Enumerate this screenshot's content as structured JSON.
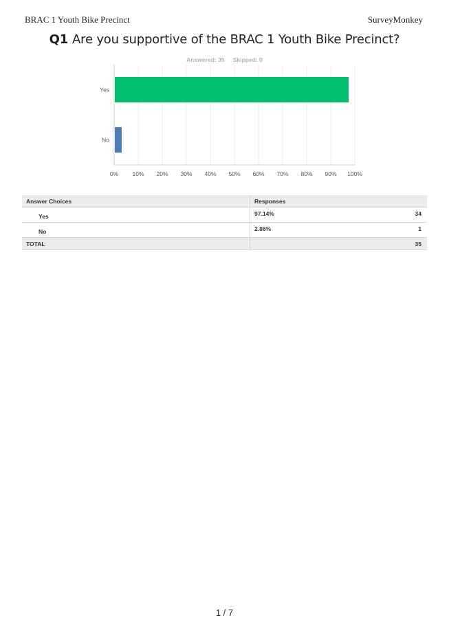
{
  "header": {
    "left": "BRAC 1 Youth Bike Precinct",
    "right": "SurveyMonkey"
  },
  "question": {
    "number": "Q1",
    "text": "Are you supportive of the BRAC 1 Youth Bike Precinct?"
  },
  "stats": {
    "answered": "Answered: 35",
    "skipped": "Skipped: 0"
  },
  "chart_data": {
    "type": "bar",
    "orientation": "horizontal",
    "categories": [
      "Yes",
      "No"
    ],
    "values": [
      97.14,
      2.86
    ],
    "colors": [
      "#00bf6f",
      "#507cb6"
    ],
    "xlim": [
      0,
      100
    ],
    "xticks": [
      "0%",
      "10%",
      "20%",
      "30%",
      "40%",
      "50%",
      "60%",
      "70%",
      "80%",
      "90%",
      "100%"
    ],
    "grid": true
  },
  "table": {
    "headers": {
      "choices": "Answer Choices",
      "responses": "Responses"
    },
    "rows": [
      {
        "choice": "Yes",
        "percent": "97.14%",
        "count": "34"
      },
      {
        "choice": "No",
        "percent": "2.86%",
        "count": "1"
      }
    ],
    "total": {
      "label": "TOTAL",
      "count": "35"
    }
  },
  "footer": {
    "page": "1 / 7"
  }
}
